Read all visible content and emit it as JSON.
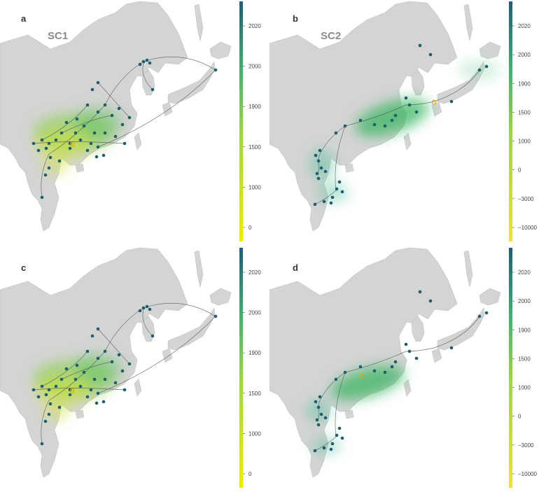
{
  "colors": {
    "land": "#d4d4d4",
    "land_edge": "#c2c2c2",
    "sea": "#ffffff",
    "track": "#555555",
    "node": "#1e5f6e",
    "scale_low": "#f1e51d",
    "scale_mid": "#42b56e",
    "scale_high": "#1c5f77"
  },
  "panels": [
    {
      "letter": "a",
      "title": "SC1",
      "colorbar_ticks": [
        "2020",
        "2000",
        "1900",
        "1500",
        "1000",
        "0"
      ],
      "glow_tone": "yellow-green"
    },
    {
      "letter": "b",
      "title": "SC2",
      "colorbar_ticks": [
        "2020",
        "2000",
        "1900",
        "1500",
        "1000",
        "0",
        "−3000",
        "−10000"
      ],
      "glow_tone": "green"
    },
    {
      "letter": "c",
      "title": "",
      "colorbar_ticks": [
        "2020",
        "2000",
        "1900",
        "1500",
        "1000",
        "0"
      ],
      "glow_tone": "yellow-green"
    },
    {
      "letter": "d",
      "title": "",
      "colorbar_ticks": [
        "2020",
        "2000",
        "1900",
        "1500",
        "1000",
        "0",
        "−3000",
        "−10000"
      ],
      "glow_tone": "green"
    }
  ]
}
